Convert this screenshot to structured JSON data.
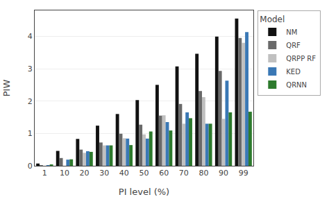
{
  "chart_data": {
    "type": "bar",
    "xlabel": "PI level (%)",
    "ylabel": "PIW",
    "legend_title": "Model",
    "categories": [
      "1",
      "10",
      "20",
      "30",
      "40",
      "50",
      "60",
      "70",
      "80",
      "90",
      "99"
    ],
    "series": [
      {
        "name": "NM",
        "color": "#111111",
        "values": [
          0.07,
          0.46,
          0.83,
          1.24,
          1.6,
          2.03,
          2.5,
          3.07,
          3.46,
          3.99,
          4.55
        ]
      },
      {
        "name": "QRF",
        "color": "#696969",
        "values": [
          0.02,
          0.24,
          0.5,
          0.72,
          0.99,
          1.27,
          1.55,
          1.91,
          2.31,
          2.93,
          3.95
        ]
      },
      {
        "name": "QRPP RF",
        "color": "#c0c0c0",
        "values": [
          0.0,
          0.0,
          0.4,
          0.63,
          0.85,
          0.97,
          1.56,
          1.3,
          2.12,
          1.45,
          3.8
        ]
      },
      {
        "name": "KED",
        "color": "#3a78b5",
        "values": [
          0.02,
          0.19,
          0.45,
          0.63,
          0.84,
          0.84,
          1.35,
          1.65,
          1.3,
          2.63,
          4.13
        ]
      },
      {
        "name": "QRNN",
        "color": "#2d7a2d",
        "values": [
          0.03,
          0.2,
          0.43,
          0.63,
          0.64,
          1.06,
          1.09,
          1.47,
          1.3,
          1.65,
          1.67
        ]
      }
    ],
    "ylim": [
      0,
      4.8
    ],
    "yticks": [
      0,
      1,
      2,
      3,
      4
    ],
    "grid": true,
    "legend": "upper right"
  }
}
